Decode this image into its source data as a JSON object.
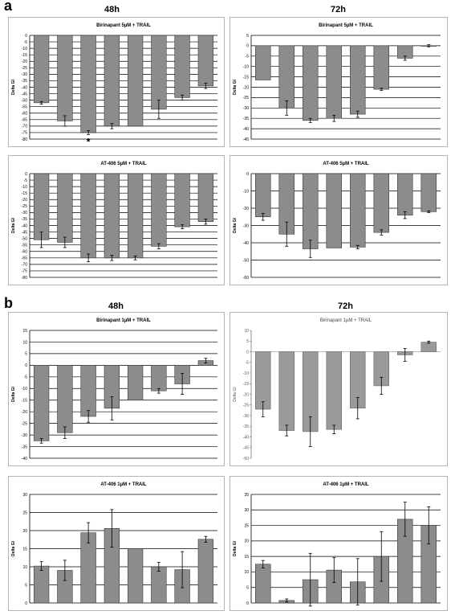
{
  "labels": {
    "panel_a": "a",
    "panel_b": "b",
    "a_col_left": "48h",
    "a_col_right": "72h",
    "b_col_left": "48h",
    "b_col_right": "72h"
  },
  "chart_data": [
    {
      "type": "bar",
      "title": "Birinapant 5µM + TRAIL",
      "ylabel": "Delta GI",
      "ylim": [
        -80,
        0
      ],
      "yticks": [
        0,
        -5,
        -10,
        -15,
        -20,
        -25,
        -30,
        -35,
        -40,
        -45,
        -50,
        -55,
        -60,
        -65,
        -70,
        -75,
        -80
      ],
      "values": [
        -52,
        -66,
        -75,
        -70,
        -70,
        -57,
        -48,
        -39
      ],
      "errors": [
        1,
        4,
        1.5,
        2,
        0,
        7,
        2,
        2
      ],
      "annotations": [
        {
          "bar": 2,
          "text": "*"
        }
      ],
      "grid": true
    },
    {
      "type": "bar",
      "title": "Birinapant 5µM + TRAIL",
      "ylabel": "Delta GI",
      "ylim": [
        -45,
        5
      ],
      "yticks": [
        5,
        0,
        -5,
        -10,
        -15,
        -20,
        -25,
        -30,
        -35,
        -40,
        -45
      ],
      "values": [
        -16.5,
        -30,
        -36,
        -35,
        -33,
        -21,
        -6,
        0
      ],
      "errors": [
        0,
        3.5,
        1,
        1.5,
        1.5,
        0.5,
        1,
        0.5
      ],
      "grid": true
    },
    {
      "type": "bar",
      "title": "AT-406 5µM + TRAIL",
      "ylabel": "Delta GI",
      "ylim": [
        -80,
        0
      ],
      "yticks": [
        0,
        -5,
        -10,
        -15,
        -20,
        -25,
        -30,
        -35,
        -40,
        -45,
        -50,
        -55,
        -60,
        -65,
        -70,
        -75,
        -80
      ],
      "values": [
        -51,
        -53,
        -65,
        -65,
        -65,
        -56,
        -41,
        -37
      ],
      "errors": [
        6,
        4,
        3,
        2,
        1.5,
        2,
        1.5,
        2
      ],
      "grid": true
    },
    {
      "type": "bar",
      "title": "AT-406 5µM + TRAIL",
      "ylabel": "Delta GI",
      "ylim": [
        -60,
        0
      ],
      "yticks": [
        0,
        -10,
        -20,
        -30,
        -40,
        -50,
        -60
      ],
      "values": [
        -25,
        -35,
        -43.5,
        -43,
        -42.5,
        -34,
        -24,
        -22
      ],
      "errors": [
        2,
        7,
        5,
        0,
        1,
        1.5,
        2,
        0.5
      ],
      "grid": true
    },
    {
      "type": "bar",
      "title": "Birinapant 1µM + TRAIL",
      "ylabel": "Delta GI",
      "ylim": [
        -40,
        15
      ],
      "yticks": [
        15,
        10,
        5,
        0,
        -5,
        -10,
        -15,
        -20,
        -25,
        -30,
        -35,
        -40
      ],
      "values": [
        -32.5,
        -29,
        -22,
        -18.5,
        -15,
        -11,
        -8,
        2
      ],
      "errors": [
        1,
        2.5,
        2.5,
        5,
        0,
        1,
        4.5,
        1
      ],
      "grid": true
    },
    {
      "type": "bar",
      "title": "Birinapant 1µM + TRAIL",
      "ylabel": "Delta GI",
      "ylim": [
        -50,
        10
      ],
      "yticks": [
        10,
        5,
        0,
        -5,
        -10,
        -15,
        -20,
        -25,
        -30,
        -35,
        -40,
        -45,
        -50
      ],
      "values": [
        -27,
        -37,
        -37.5,
        -36.5,
        -26.5,
        -16,
        -1.5,
        4.5
      ],
      "errors": [
        3.5,
        2.5,
        7,
        2,
        5,
        4,
        3,
        0.5
      ],
      "grid": false,
      "style": "light"
    },
    {
      "type": "bar",
      "title": "AT-406 1µM + TRAIL",
      "ylabel": "Delta GI",
      "ylim": [
        0,
        30
      ],
      "yticks": [
        0,
        5,
        10,
        15,
        20,
        25,
        30
      ],
      "values": [
        10.2,
        9,
        19.4,
        20.6,
        15,
        10,
        9.2,
        17.6
      ],
      "errors": [
        1.2,
        2.8,
        2.8,
        5.2,
        0,
        1.2,
        5,
        0.8
      ],
      "grid": true
    },
    {
      "type": "bar",
      "title": "AT-406 1µM + TRAIL",
      "ylabel": "Delta GI",
      "ylim": [
        0,
        35
      ],
      "yticks": [
        0,
        5,
        10,
        15,
        20,
        25,
        30,
        35
      ],
      "values": [
        12.5,
        0.8,
        7.5,
        10.6,
        6.8,
        15,
        27,
        25
      ],
      "errors": [
        1.2,
        0.5,
        8.5,
        4,
        7.5,
        8,
        5.5,
        6
      ],
      "grid": true
    }
  ]
}
